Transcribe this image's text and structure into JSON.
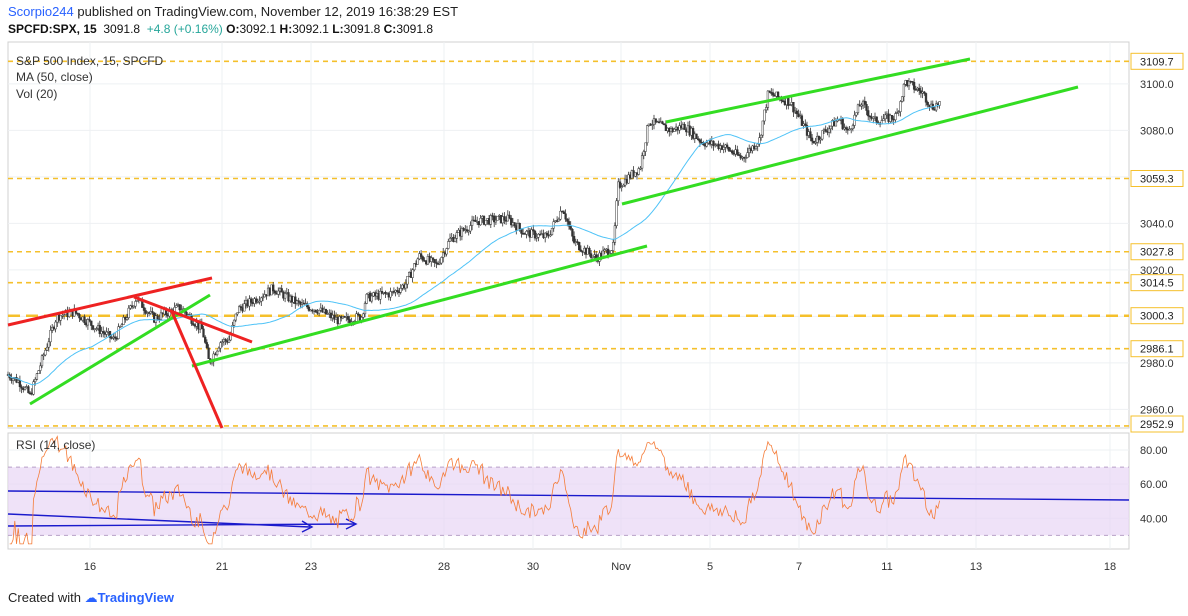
{
  "header": {
    "author": "Scorpio244",
    "published_text": "published on TradingView.com, November 12, 2019 16:38:29 EST"
  },
  "quote": {
    "symbol": "SPCFD:SPX, 15",
    "last": "3091.8",
    "change": "+4.8 (+0.16%)",
    "open_label": "O:",
    "open": "3092.1",
    "high_label": "H:",
    "high": "3092.1",
    "low_label": "L:",
    "low": "3091.8",
    "close_label": "C:",
    "close": "3091.8"
  },
  "legend": {
    "title": "S&P 500 Index, 15, SPCFD",
    "ma": "MA (50, close)",
    "vol": "Vol (20)",
    "rsi": "RSI (14, close)"
  },
  "footer": {
    "created_with": "Created with",
    "brand": "TradingView"
  },
  "colors": {
    "up": "#26a69a",
    "down": "#ef5350",
    "candle": "#333333",
    "ma": "#4fc3f7",
    "green_line": "#33dd22",
    "red_line": "#ee2222",
    "level": "#f5c02c",
    "rsi": "#f57c38",
    "rsi_band": "#e8d5f5",
    "blue_line": "#1a1acc"
  },
  "chart_data": [
    {
      "type": "candlestick",
      "title": "S&P 500 Index, 15, SPCFD",
      "x_ticks": [
        "16",
        "21",
        "23",
        "28",
        "30",
        "Nov",
        "5",
        "7",
        "11",
        "13",
        "18"
      ],
      "y_ticks": [
        2960.0,
        2980.0,
        3000.0,
        3020.0,
        3040.0,
        3060.0,
        3080.0,
        3100.0
      ],
      "ylim": [
        2952,
        3118
      ],
      "levels": [
        3109.7,
        3059.3,
        3027.8,
        3014.5,
        3000.3,
        2986.1,
        2952.9
      ],
      "level_labels": [
        "3109.7",
        "3059.3",
        "3027.8",
        "3014.5",
        "3000.3",
        "2986.1",
        "2952.9"
      ],
      "y_tick_labels": [
        "2960.0",
        "2980.0",
        "3000.0",
        "3020.0",
        "3040.0",
        "3060.0",
        "3080.0",
        "3100.0"
      ],
      "price_path": [
        {
          "d": 0,
          "p": 2975
        },
        {
          "d": 0.25,
          "p": 2972
        },
        {
          "d": 0.5,
          "p": 2966
        },
        {
          "d": 1.1,
          "p": 3000
        },
        {
          "d": 1.5,
          "p": 3002
        },
        {
          "d": 2.0,
          "p": 2995
        },
        {
          "d": 2.4,
          "p": 2990
        },
        {
          "d": 2.9,
          "p": 3008
        },
        {
          "d": 3.3,
          "p": 2999
        },
        {
          "d": 3.9,
          "p": 3004
        },
        {
          "d": 4.4,
          "p": 2994
        },
        {
          "d": 4.55,
          "p": 2980
        },
        {
          "d": 4.8,
          "p": 2989
        },
        {
          "d": 5.0,
          "p": 2990
        },
        {
          "d": 5.2,
          "p": 3003
        },
        {
          "d": 6.0,
          "p": 3012
        },
        {
          "d": 6.6,
          "p": 3005
        },
        {
          "d": 7.0,
          "p": 3003
        },
        {
          "d": 7.5,
          "p": 2998
        },
        {
          "d": 8.0,
          "p": 3000
        },
        {
          "d": 8.1,
          "p": 3008
        },
        {
          "d": 8.7,
          "p": 3010
        },
        {
          "d": 9.0,
          "p": 3014
        },
        {
          "d": 9.3,
          "p": 3026
        },
        {
          "d": 9.7,
          "p": 3022
        },
        {
          "d": 10.0,
          "p": 3033
        },
        {
          "d": 10.6,
          "p": 3041
        },
        {
          "d": 11.3,
          "p": 3042
        },
        {
          "d": 11.7,
          "p": 3036
        },
        {
          "d": 12.2,
          "p": 3034
        },
        {
          "d": 12.55,
          "p": 3047
        },
        {
          "d": 12.8,
          "p": 3032
        },
        {
          "d": 13.3,
          "p": 3025
        },
        {
          "d": 13.7,
          "p": 3030
        },
        {
          "d": 13.8,
          "p": 3056
        },
        {
          "d": 14.3,
          "p": 3064
        },
        {
          "d": 14.5,
          "p": 3084
        },
        {
          "d": 15.0,
          "p": 3080
        },
        {
          "d": 15.3,
          "p": 3082
        },
        {
          "d": 15.7,
          "p": 3075
        },
        {
          "d": 16.2,
          "p": 3073
        },
        {
          "d": 16.6,
          "p": 3068
        },
        {
          "d": 17.0,
          "p": 3076
        },
        {
          "d": 17.2,
          "p": 3096
        },
        {
          "d": 17.7,
          "p": 3092
        },
        {
          "d": 18.0,
          "p": 3082
        },
        {
          "d": 18.2,
          "p": 3075
        },
        {
          "d": 18.8,
          "p": 3085
        },
        {
          "d": 19.0,
          "p": 3079
        },
        {
          "d": 19.3,
          "p": 3092
        },
        {
          "d": 19.6,
          "p": 3084
        },
        {
          "d": 20.1,
          "p": 3086
        },
        {
          "d": 20.3,
          "p": 3101
        },
        {
          "d": 20.7,
          "p": 3096
        },
        {
          "d": 20.9,
          "p": 3090
        },
        {
          "d": 21.1,
          "p": 3092
        }
      ]
    },
    {
      "type": "line",
      "title": "RSI (14, close)",
      "y_ticks": [
        40.0,
        60.0,
        80.0
      ],
      "y_tick_labels": [
        "40.00",
        "60.00",
        "80.00"
      ],
      "band": [
        30,
        70
      ],
      "ylim": [
        22,
        90
      ]
    }
  ]
}
